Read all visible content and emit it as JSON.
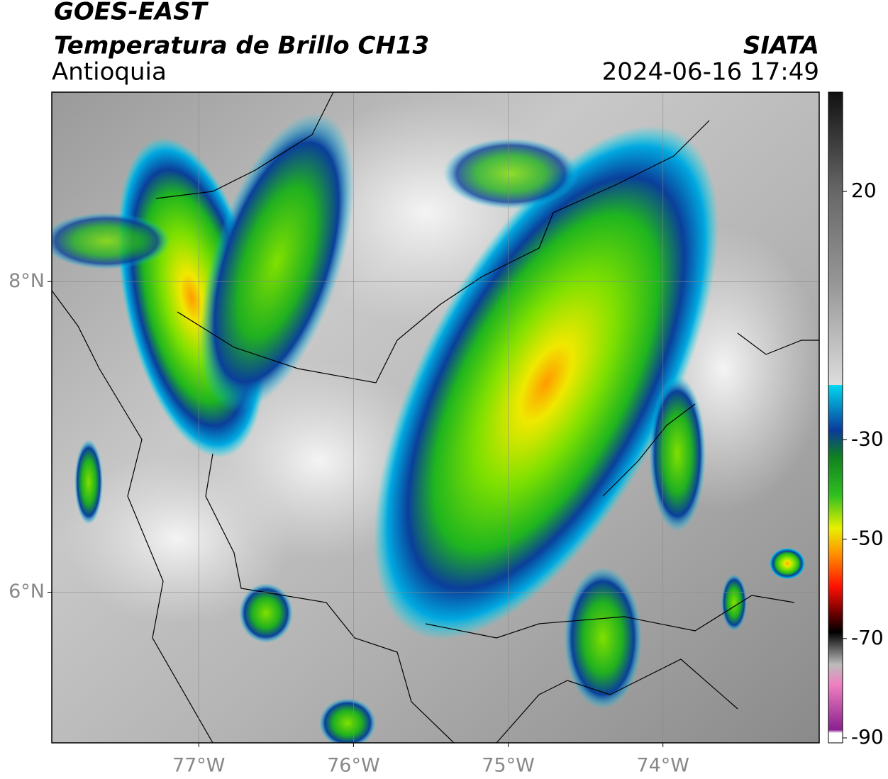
{
  "chart_data": {
    "type": "map",
    "title": "GOES-EAST",
    "subtitle": "Temperatura de Brillo CH13",
    "region": "Antioquia",
    "source": "SIATA",
    "timestamp": "2024-06-16 17:49",
    "xlim": [
      -77.95,
      -72.99
    ],
    "ylim": [
      5.03,
      9.22
    ],
    "xticks": [
      {
        "value": -77,
        "label": "77°W"
      },
      {
        "value": -76,
        "label": "76°W"
      },
      {
        "value": -75,
        "label": "75°W"
      },
      {
        "value": -74,
        "label": "74°W"
      }
    ],
    "yticks": [
      {
        "value": 6,
        "label": "6°N"
      },
      {
        "value": 8,
        "label": "8°N"
      }
    ],
    "grid": true,
    "colorbar": {
      "lim": [
        -91,
        40
      ],
      "ticks": [
        20,
        -30,
        -50,
        -70,
        -90
      ]
    }
  }
}
